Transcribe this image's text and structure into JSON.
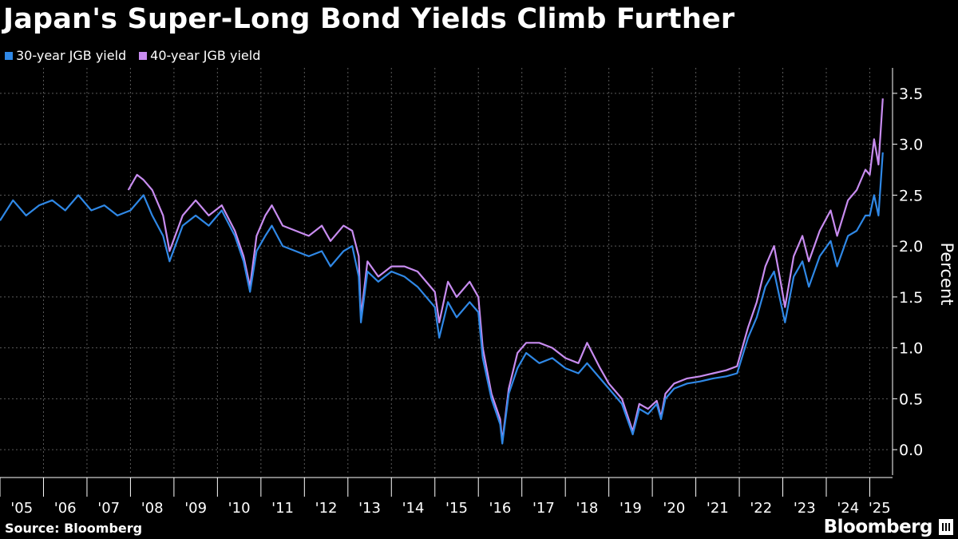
{
  "title": "Japan's Super-Long Bond Yields Climb Further",
  "legend": [
    {
      "label": "30-year JGB yield",
      "color": "#2f88e6"
    },
    {
      "label": "40-year JGB yield",
      "color": "#c88cf0"
    }
  ],
  "source": "Source: Bloomberg",
  "brand": "Bloomberg",
  "chart_data": {
    "type": "line",
    "title": "Japan's Super-Long Bond Yields Climb Further",
    "ylabel": "Percent",
    "ylim": [
      -0.25,
      3.75
    ],
    "yticks": [
      0.0,
      0.5,
      1.0,
      1.5,
      2.0,
      2.5,
      3.0,
      3.5
    ],
    "ytick_labels": [
      "0.0",
      "0.5",
      "1.0",
      "1.5",
      "2.0",
      "2.5",
      "3.0",
      "3.5"
    ],
    "xlim": [
      2005.0,
      2025.45
    ],
    "xtick_labels": [
      "'05",
      "'06",
      "'07",
      "'08",
      "'09",
      "'10",
      "'11",
      "'12",
      "'13",
      "'14",
      "'15",
      "'16",
      "'17",
      "'18",
      "'19",
      "'20",
      "'21",
      "'22",
      "'23",
      "'24",
      "'25"
    ],
    "grid": true,
    "legend_position": "top-left",
    "series": [
      {
        "name": "30-year JGB yield",
        "x": [
          2005.0,
          2005.3,
          2005.6,
          2005.9,
          2006.2,
          2006.5,
          2006.8,
          2007.1,
          2007.4,
          2007.7,
          2008.0,
          2008.3,
          2008.5,
          2008.75,
          2008.9,
          2009.2,
          2009.5,
          2009.8,
          2010.1,
          2010.4,
          2010.6,
          2010.75,
          2010.9,
          2011.1,
          2011.25,
          2011.5,
          2011.8,
          2012.1,
          2012.4,
          2012.6,
          2012.9,
          2013.1,
          2013.25,
          2013.3,
          2013.45,
          2013.7,
          2014.0,
          2014.3,
          2014.6,
          2014.9,
          2015.0,
          2015.1,
          2015.3,
          2015.5,
          2015.8,
          2016.0,
          2016.1,
          2016.3,
          2016.5,
          2016.55,
          2016.7,
          2016.9,
          2017.1,
          2017.4,
          2017.7,
          2018.0,
          2018.3,
          2018.5,
          2018.8,
          2019.0,
          2019.3,
          2019.55,
          2019.7,
          2019.9,
          2020.1,
          2020.2,
          2020.3,
          2020.5,
          2020.8,
          2021.1,
          2021.4,
          2021.7,
          2021.95,
          2022.2,
          2022.4,
          2022.6,
          2022.8,
          2022.95,
          2023.05,
          2023.25,
          2023.45,
          2023.6,
          2023.85,
          2024.1,
          2024.25,
          2024.5,
          2024.7,
          2024.9,
          2025.0,
          2025.1,
          2025.2,
          2025.3
        ],
        "y": [
          2.25,
          2.45,
          2.3,
          2.4,
          2.45,
          2.35,
          2.5,
          2.35,
          2.4,
          2.3,
          2.35,
          2.5,
          2.3,
          2.1,
          1.85,
          2.2,
          2.3,
          2.2,
          2.35,
          2.1,
          1.85,
          1.55,
          1.95,
          2.1,
          2.2,
          2.0,
          1.95,
          1.9,
          1.95,
          1.8,
          1.95,
          2.0,
          1.7,
          1.25,
          1.75,
          1.65,
          1.75,
          1.7,
          1.6,
          1.45,
          1.4,
          1.1,
          1.45,
          1.3,
          1.45,
          1.35,
          0.9,
          0.5,
          0.25,
          0.06,
          0.55,
          0.8,
          0.95,
          0.85,
          0.9,
          0.8,
          0.75,
          0.85,
          0.7,
          0.6,
          0.45,
          0.15,
          0.4,
          0.35,
          0.45,
          0.3,
          0.5,
          0.6,
          0.65,
          0.67,
          0.7,
          0.72,
          0.75,
          1.1,
          1.3,
          1.6,
          1.75,
          1.45,
          1.25,
          1.7,
          1.85,
          1.6,
          1.9,
          2.05,
          1.8,
          2.1,
          2.15,
          2.3,
          2.3,
          2.5,
          2.3,
          2.92
        ]
      },
      {
        "name": "40-year JGB yield",
        "x": [
          2007.95,
          2008.15,
          2008.3,
          2008.5,
          2008.75,
          2008.9,
          2009.2,
          2009.5,
          2009.8,
          2010.1,
          2010.4,
          2010.6,
          2010.75,
          2010.9,
          2011.1,
          2011.25,
          2011.5,
          2011.8,
          2012.1,
          2012.4,
          2012.6,
          2012.9,
          2013.1,
          2013.25,
          2013.3,
          2013.45,
          2013.7,
          2014.0,
          2014.3,
          2014.6,
          2014.9,
          2015.0,
          2015.1,
          2015.3,
          2015.5,
          2015.8,
          2016.0,
          2016.1,
          2016.3,
          2016.5,
          2016.55,
          2016.7,
          2016.9,
          2017.1,
          2017.4,
          2017.7,
          2018.0,
          2018.3,
          2018.5,
          2018.8,
          2019.0,
          2019.3,
          2019.55,
          2019.7,
          2019.9,
          2020.1,
          2020.2,
          2020.3,
          2020.5,
          2020.8,
          2021.1,
          2021.4,
          2021.7,
          2021.95,
          2022.2,
          2022.4,
          2022.6,
          2022.8,
          2022.95,
          2023.05,
          2023.25,
          2023.45,
          2023.6,
          2023.85,
          2024.1,
          2024.25,
          2024.5,
          2024.7,
          2024.9,
          2025.0,
          2025.1,
          2025.2,
          2025.3
        ],
        "y": [
          2.55,
          2.7,
          2.65,
          2.55,
          2.3,
          1.95,
          2.3,
          2.45,
          2.3,
          2.4,
          2.15,
          1.9,
          1.6,
          2.1,
          2.3,
          2.4,
          2.2,
          2.15,
          2.1,
          2.2,
          2.05,
          2.2,
          2.15,
          1.9,
          1.3,
          1.85,
          1.7,
          1.8,
          1.8,
          1.75,
          1.6,
          1.55,
          1.25,
          1.65,
          1.5,
          1.65,
          1.5,
          1.0,
          0.55,
          0.3,
          0.08,
          0.6,
          0.95,
          1.05,
          1.05,
          1.0,
          0.9,
          0.85,
          1.05,
          0.8,
          0.65,
          0.5,
          0.18,
          0.45,
          0.4,
          0.48,
          0.32,
          0.55,
          0.65,
          0.7,
          0.72,
          0.75,
          0.78,
          0.82,
          1.2,
          1.45,
          1.8,
          2.0,
          1.65,
          1.4,
          1.9,
          2.1,
          1.85,
          2.15,
          2.35,
          2.1,
          2.45,
          2.55,
          2.75,
          2.7,
          3.05,
          2.8,
          3.45
        ]
      }
    ]
  }
}
